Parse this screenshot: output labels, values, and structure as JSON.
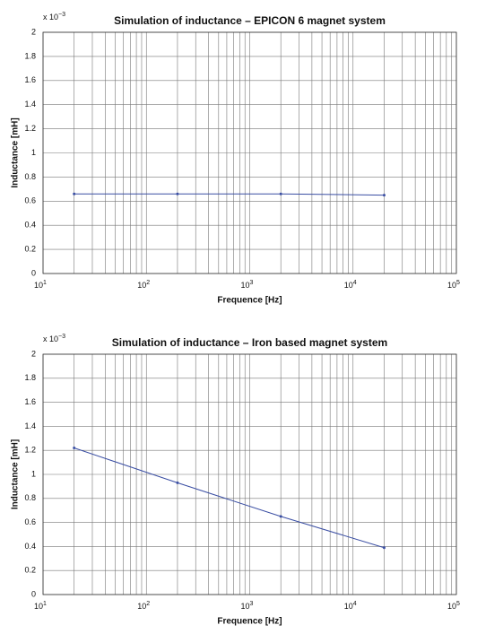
{
  "chart_data": [
    {
      "type": "line",
      "title": "Simulation of inductance – EPICON 6 magnet system",
      "xlabel": "Frequence [Hz]",
      "ylabel": "Inductance [mH]",
      "y_multiplier": "x 10",
      "y_multiplier_exponent": "−3",
      "x": [
        20,
        200,
        2000,
        20000
      ],
      "series": [
        {
          "name": "Inductance",
          "color": "#3a4ea3",
          "values": [
            0.66,
            0.66,
            0.66,
            0.65
          ]
        }
      ],
      "xscale": "log",
      "xlim": [
        10,
        100000
      ],
      "xticks": [
        {
          "value": 10,
          "label": "10",
          "exponent": "1"
        },
        {
          "value": 100,
          "label": "10",
          "exponent": "2"
        },
        {
          "value": 1000,
          "label": "10",
          "exponent": "3"
        },
        {
          "value": 10000,
          "label": "10",
          "exponent": "4"
        },
        {
          "value": 100000,
          "label": "10",
          "exponent": "5"
        }
      ],
      "ylim": [
        0,
        2
      ],
      "yticks": [
        0,
        0.2,
        0.4,
        0.6,
        0.8,
        1,
        1.2,
        1.4,
        1.6,
        1.8,
        2
      ],
      "grid": true
    },
    {
      "type": "line",
      "title": "Simulation of inductance – Iron based magnet system",
      "xlabel": "Frequence [Hz]",
      "ylabel": "Inductance [mH]",
      "y_multiplier": "x 10",
      "y_multiplier_exponent": "−3",
      "x": [
        20,
        200,
        2000,
        20000
      ],
      "series": [
        {
          "name": "Inductance",
          "color": "#3a4ea3",
          "values": [
            1.22,
            0.93,
            0.65,
            0.39
          ]
        }
      ],
      "xscale": "log",
      "xlim": [
        10,
        100000
      ],
      "xticks": [
        {
          "value": 10,
          "label": "10",
          "exponent": "1"
        },
        {
          "value": 100,
          "label": "10",
          "exponent": "2"
        },
        {
          "value": 1000,
          "label": "10",
          "exponent": "3"
        },
        {
          "value": 10000,
          "label": "10",
          "exponent": "4"
        },
        {
          "value": 100000,
          "label": "10",
          "exponent": "5"
        }
      ],
      "ylim": [
        0,
        2
      ],
      "yticks": [
        0,
        0.2,
        0.4,
        0.6,
        0.8,
        1,
        1.2,
        1.4,
        1.6,
        1.8,
        2
      ],
      "grid": true
    }
  ]
}
